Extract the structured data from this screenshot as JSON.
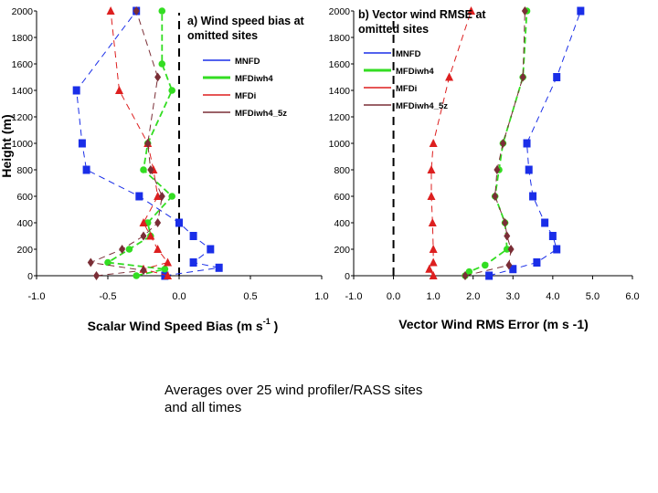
{
  "caption": {
    "line1": "Averages over 25 wind profiler/RASS sites",
    "line2": "and all times"
  },
  "colors": {
    "MNFD": "#1a2ee8",
    "MFDiwh4": "#33dd22",
    "MFDi": "#dd1f1f",
    "MFDiwh4_5z": "#7a2e36"
  },
  "chart_data": [
    {
      "type": "line",
      "title": "a) Wind speed bias at omitted sites",
      "title_lines": [
        "a) Wind speed bias at",
        "omitted sites"
      ],
      "xlabel": "Scalar Wind Speed Bias (m s",
      "xlabel_sup": "-1",
      "xlabel_end": ")",
      "ylabel": "Height (m)",
      "xlim": [
        -1.0,
        1.0
      ],
      "ylim": [
        0,
        2000
      ],
      "xticks": [
        -1.0,
        -0.5,
        0.0,
        0.5,
        1.0
      ],
      "xtick_labels": [
        "-1.0",
        "-0.5",
        "0.0",
        "0.5",
        "1.0"
      ],
      "yticks": [
        0,
        200,
        400,
        600,
        800,
        1000,
        1200,
        1400,
        1600,
        1800,
        2000
      ],
      "ytick_labels": [
        "0",
        "200",
        "400",
        "600",
        "800",
        "1000",
        "1200",
        "1400",
        "1600",
        "1800",
        "2000"
      ],
      "reference_line_x": 0.0,
      "legend_position": "right",
      "legend": [
        "MNFD",
        "MFDiwh4",
        "MFDi",
        "MFDiwh4_5z"
      ],
      "series": [
        {
          "name": "MNFD",
          "marker": "square",
          "points": [
            [
              -0.1,
              0
            ],
            [
              0.28,
              60
            ],
            [
              0.1,
              100
            ],
            [
              0.22,
              200
            ],
            [
              0.1,
              300
            ],
            [
              0.0,
              400
            ],
            [
              -0.28,
              600
            ],
            [
              -0.65,
              800
            ],
            [
              -0.68,
              1000
            ],
            [
              -0.72,
              1400
            ],
            [
              -0.3,
              2000
            ]
          ]
        },
        {
          "name": "MFDiwh4",
          "marker": "circle",
          "points": [
            [
              -0.3,
              0
            ],
            [
              -0.1,
              50
            ],
            [
              -0.5,
              100
            ],
            [
              -0.35,
              200
            ],
            [
              -0.2,
              300
            ],
            [
              -0.22,
              400
            ],
            [
              -0.05,
              600
            ],
            [
              -0.25,
              800
            ],
            [
              -0.22,
              1000
            ],
            [
              -0.05,
              1400
            ],
            [
              -0.12,
              1600
            ],
            [
              -0.12,
              2000
            ]
          ]
        },
        {
          "name": "MFDi",
          "marker": "triangle",
          "points": [
            [
              -0.08,
              0
            ],
            [
              -0.25,
              50
            ],
            [
              -0.08,
              100
            ],
            [
              -0.15,
              200
            ],
            [
              -0.2,
              300
            ],
            [
              -0.25,
              400
            ],
            [
              -0.15,
              600
            ],
            [
              -0.18,
              800
            ],
            [
              -0.22,
              1000
            ],
            [
              -0.42,
              1400
            ],
            [
              -0.48,
              2000
            ]
          ]
        },
        {
          "name": "MFDiwh4_5z",
          "marker": "diamond",
          "points": [
            [
              -0.58,
              0
            ],
            [
              -0.25,
              40
            ],
            [
              -0.62,
              100
            ],
            [
              -0.4,
              200
            ],
            [
              -0.25,
              300
            ],
            [
              -0.15,
              400
            ],
            [
              -0.12,
              600
            ],
            [
              -0.2,
              800
            ],
            [
              -0.22,
              1000
            ],
            [
              -0.15,
              1500
            ],
            [
              -0.3,
              2000
            ]
          ]
        }
      ]
    },
    {
      "type": "line",
      "title": "b) Vector wind RMSE at omitted sites",
      "title_lines": [
        "b) Vector wind RMSE at",
        "omitted sites"
      ],
      "xlabel": "Vector Wind RMS Error (m s -1)",
      "ylabel": "",
      "xlim": [
        -1.0,
        6.0
      ],
      "ylim": [
        0,
        2000
      ],
      "xticks": [
        -1.0,
        0.0,
        1.0,
        2.0,
        3.0,
        4.0,
        5.0,
        6.0
      ],
      "xtick_labels": [
        "-1.0",
        "0.0",
        "1.0",
        "2.0",
        "3.0",
        "4.0",
        "5.0",
        "6.0"
      ],
      "yticks": [
        0,
        200,
        400,
        600,
        800,
        1000,
        1200,
        1400,
        1600,
        1800,
        2000
      ],
      "ytick_labels": [
        "0",
        "200",
        "400",
        "600",
        "800",
        "1000",
        "1200",
        "1400",
        "1600",
        "1800",
        "2000"
      ],
      "reference_line_x": 0.0,
      "legend_position": "right",
      "legend": [
        "MNFD",
        "MFDiwh4",
        "MFDi",
        "MFDiwh4_5z"
      ],
      "series": [
        {
          "name": "MNFD",
          "marker": "square",
          "points": [
            [
              2.4,
              0
            ],
            [
              3.0,
              50
            ],
            [
              3.6,
              100
            ],
            [
              4.1,
              200
            ],
            [
              4.0,
              300
            ],
            [
              3.8,
              400
            ],
            [
              3.5,
              600
            ],
            [
              3.4,
              800
            ],
            [
              3.35,
              1000
            ],
            [
              4.1,
              1500
            ],
            [
              4.7,
              2000
            ]
          ]
        },
        {
          "name": "MFDiwh4",
          "marker": "circle",
          "points": [
            [
              1.8,
              0
            ],
            [
              1.9,
              30
            ],
            [
              2.3,
              80
            ],
            [
              2.85,
              200
            ],
            [
              2.8,
              400
            ],
            [
              2.55,
              600
            ],
            [
              2.65,
              800
            ],
            [
              2.75,
              1000
            ],
            [
              3.25,
              1500
            ],
            [
              3.35,
              2000
            ]
          ]
        },
        {
          "name": "MFDi",
          "marker": "triangle",
          "points": [
            [
              1.0,
              0
            ],
            [
              0.9,
              50
            ],
            [
              1.0,
              100
            ],
            [
              1.0,
              200
            ],
            [
              0.98,
              400
            ],
            [
              0.95,
              600
            ],
            [
              0.95,
              800
            ],
            [
              1.0,
              1000
            ],
            [
              1.4,
              1500
            ],
            [
              1.95,
              2000
            ]
          ]
        },
        {
          "name": "MFDiwh4_5z",
          "marker": "diamond",
          "points": [
            [
              1.8,
              0
            ],
            [
              2.9,
              80
            ],
            [
              2.95,
              200
            ],
            [
              2.85,
              300
            ],
            [
              2.8,
              400
            ],
            [
              2.55,
              600
            ],
            [
              2.6,
              800
            ],
            [
              2.75,
              1000
            ],
            [
              3.25,
              1500
            ],
            [
              3.3,
              2000
            ]
          ]
        }
      ]
    }
  ]
}
